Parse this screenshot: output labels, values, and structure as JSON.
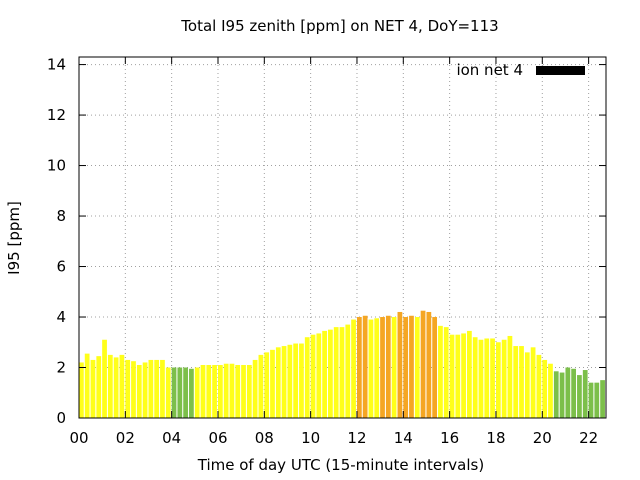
{
  "chart_data": {
    "type": "bar",
    "title": "Total I95 zenith [ppm] on NET 4, DoY=113",
    "xlabel": "Time of day UTC (15-minute intervals)",
    "ylabel": "I95 [ppm]",
    "legend": {
      "label": "ion net 4",
      "color": "#000000",
      "placement": "top-right"
    },
    "grid": true,
    "xlim": [
      0,
      22.75
    ],
    "ylim": [
      0,
      14.3
    ],
    "xticks": [
      "00",
      "02",
      "04",
      "06",
      "08",
      "10",
      "12",
      "14",
      "16",
      "18",
      "20",
      "22"
    ],
    "yticks": [
      0,
      2,
      4,
      6,
      8,
      10,
      12,
      14
    ],
    "colors": {
      "low": "#7cbf4a",
      "mid": "#ffff1a",
      "high": "#f5a623"
    },
    "bar_interval_hours": 0.25,
    "x": [
      0.0,
      0.25,
      0.5,
      0.75,
      1.0,
      1.25,
      1.5,
      1.75,
      2.0,
      2.25,
      2.5,
      2.75,
      3.0,
      3.25,
      3.5,
      3.75,
      4.0,
      4.25,
      4.5,
      4.75,
      5.0,
      5.25,
      5.5,
      5.75,
      6.0,
      6.25,
      6.5,
      6.75,
      7.0,
      7.25,
      7.5,
      7.75,
      8.0,
      8.25,
      8.5,
      8.75,
      9.0,
      9.25,
      9.5,
      9.75,
      10.0,
      10.25,
      10.5,
      10.75,
      11.0,
      11.25,
      11.5,
      11.75,
      12.0,
      12.25,
      12.5,
      12.75,
      13.0,
      13.25,
      13.5,
      13.75,
      14.0,
      14.25,
      14.5,
      14.75,
      15.0,
      15.25,
      15.5,
      15.75,
      16.0,
      16.25,
      16.5,
      16.75,
      17.0,
      17.25,
      17.5,
      17.75,
      18.0,
      18.25,
      18.5,
      18.75,
      19.0,
      19.25,
      19.5,
      19.75,
      20.0,
      20.25,
      20.5,
      20.75,
      21.0,
      21.25,
      21.5,
      21.75,
      22.0,
      22.25,
      22.5
    ],
    "values": [
      2.2,
      2.55,
      2.3,
      2.45,
      3.1,
      2.5,
      2.4,
      2.5,
      2.3,
      2.25,
      2.1,
      2.2,
      2.3,
      2.3,
      2.3,
      2.0,
      2.0,
      2.0,
      2.0,
      1.95,
      2.0,
      2.1,
      2.1,
      2.1,
      2.1,
      2.15,
      2.15,
      2.1,
      2.1,
      2.1,
      2.3,
      2.5,
      2.6,
      2.7,
      2.8,
      2.85,
      2.9,
      2.95,
      2.95,
      3.2,
      3.3,
      3.35,
      3.45,
      3.5,
      3.6,
      3.6,
      3.7,
      3.9,
      4.0,
      4.05,
      3.9,
      3.95,
      4.0,
      4.05,
      4.0,
      4.2,
      4.0,
      4.05,
      4.0,
      4.25,
      4.2,
      4.0,
      3.65,
      3.6,
      3.3,
      3.3,
      3.35,
      3.45,
      3.2,
      3.1,
      3.15,
      3.15,
      3.0,
      3.1,
      3.25,
      2.85,
      2.85,
      2.6,
      2.8,
      2.5,
      2.3,
      2.15,
      1.85,
      1.8,
      2.0,
      1.95,
      1.7,
      1.9,
      1.4,
      1.4,
      1.5
    ],
    "bar_colors": [
      "mid",
      "mid",
      "mid",
      "mid",
      "mid",
      "mid",
      "mid",
      "mid",
      "mid",
      "mid",
      "mid",
      "mid",
      "mid",
      "mid",
      "mid",
      "mid",
      "low",
      "low",
      "low",
      "low",
      "mid",
      "mid",
      "mid",
      "mid",
      "mid",
      "mid",
      "mid",
      "mid",
      "mid",
      "mid",
      "mid",
      "mid",
      "mid",
      "mid",
      "mid",
      "mid",
      "mid",
      "mid",
      "mid",
      "mid",
      "mid",
      "mid",
      "mid",
      "mid",
      "mid",
      "mid",
      "mid",
      "mid",
      "high",
      "high",
      "mid",
      "mid",
      "high",
      "high",
      "mid",
      "high",
      "high",
      "high",
      "mid",
      "high",
      "high",
      "high",
      "mid",
      "mid",
      "mid",
      "mid",
      "mid",
      "mid",
      "mid",
      "mid",
      "mid",
      "mid",
      "mid",
      "mid",
      "mid",
      "mid",
      "mid",
      "mid",
      "mid",
      "mid",
      "mid",
      "mid",
      "low",
      "low",
      "low",
      "low",
      "low",
      "low",
      "low",
      "low",
      "low"
    ]
  }
}
